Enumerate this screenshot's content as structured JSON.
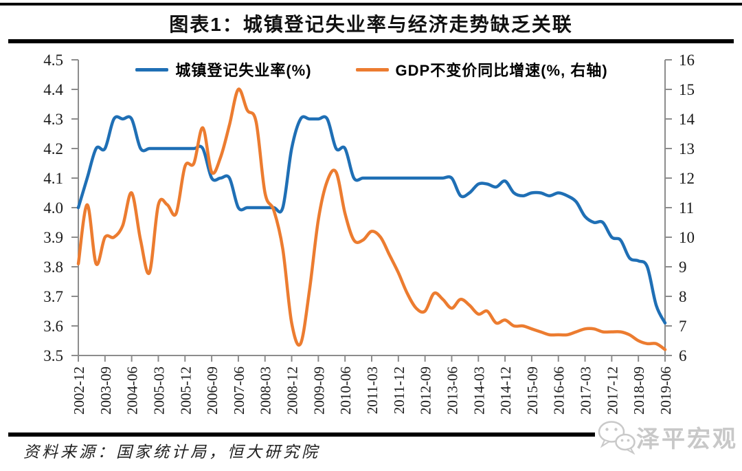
{
  "title": "图表1：城镇登记失业率与经济走势缺乏关联",
  "source_note": "资料来源：国家统计局，恒大研究院",
  "watermark": {
    "label": "泽平宏观",
    "icon": "wechat-icon"
  },
  "colors": {
    "unemployment_line": "#1f6fb5",
    "gdp_line": "#ec7c30",
    "axis": "#8c8c8c",
    "tick_text": "#1a1a1a",
    "watermark_gray": "#c8c8c8"
  },
  "chart_data": {
    "type": "line",
    "title": "图表1：城镇登记失业率与经济走势缺乏关联",
    "x_frequency": "quarterly",
    "x": [
      "2002-12",
      "2003-03",
      "2003-06",
      "2003-09",
      "2003-12",
      "2004-03",
      "2004-06",
      "2004-09",
      "2004-12",
      "2005-03",
      "2005-06",
      "2005-09",
      "2005-12",
      "2006-03",
      "2006-06",
      "2006-09",
      "2006-12",
      "2007-03",
      "2007-06",
      "2007-09",
      "2007-12",
      "2008-03",
      "2008-06",
      "2008-09",
      "2008-12",
      "2009-03",
      "2009-06",
      "2009-09",
      "2009-12",
      "2010-03",
      "2010-06",
      "2010-09",
      "2010-12",
      "2011-03",
      "2011-06",
      "2011-09",
      "2011-12",
      "2012-03",
      "2012-06",
      "2012-09",
      "2012-12",
      "2013-03",
      "2013-06",
      "2013-09",
      "2013-12",
      "2014-03",
      "2014-06",
      "2014-09",
      "2014-12",
      "2015-03",
      "2015-06",
      "2015-09",
      "2015-12",
      "2016-03",
      "2016-06",
      "2016-09",
      "2016-12",
      "2017-03",
      "2017-06",
      "2017-09",
      "2017-12",
      "2018-03",
      "2018-06",
      "2018-09",
      "2018-12",
      "2019-03",
      "2019-06"
    ],
    "x_tick_every": 3,
    "series": [
      {
        "name": "unemployment",
        "label": "城镇登记失业率(%)",
        "axis": "left",
        "color": "#1f6fb5",
        "values": [
          4.0,
          4.1,
          4.2,
          4.2,
          4.3,
          4.3,
          4.3,
          4.2,
          4.2,
          4.2,
          4.2,
          4.2,
          4.2,
          4.2,
          4.2,
          4.1,
          4.1,
          4.1,
          4.0,
          4.0,
          4.0,
          4.0,
          4.0,
          4.0,
          4.2,
          4.3,
          4.3,
          4.3,
          4.3,
          4.2,
          4.2,
          4.1,
          4.1,
          4.1,
          4.1,
          4.1,
          4.1,
          4.1,
          4.1,
          4.1,
          4.1,
          4.1,
          4.1,
          4.04,
          4.05,
          4.08,
          4.08,
          4.07,
          4.09,
          4.05,
          4.04,
          4.05,
          4.05,
          4.04,
          4.05,
          4.04,
          4.02,
          3.97,
          3.95,
          3.95,
          3.9,
          3.89,
          3.83,
          3.82,
          3.8,
          3.67,
          3.61
        ]
      },
      {
        "name": "gdp_growth",
        "label": "GDP不变价同比增速(%, 右轴)",
        "axis": "right",
        "color": "#ec7c30",
        "values": [
          9.1,
          11.1,
          9.1,
          10.0,
          10.0,
          10.4,
          11.5,
          9.9,
          8.8,
          11.1,
          11.1,
          10.8,
          12.4,
          12.5,
          13.7,
          12.2,
          12.7,
          13.8,
          15.0,
          14.3,
          13.9,
          11.5,
          10.9,
          9.6,
          7.1,
          6.4,
          8.2,
          10.6,
          11.9,
          12.2,
          10.8,
          9.9,
          9.9,
          10.2,
          10.0,
          9.4,
          8.8,
          8.1,
          7.6,
          7.5,
          8.1,
          7.9,
          7.6,
          7.9,
          7.7,
          7.4,
          7.5,
          7.1,
          7.2,
          7.0,
          7.0,
          6.9,
          6.8,
          6.7,
          6.7,
          6.7,
          6.8,
          6.9,
          6.9,
          6.8,
          6.8,
          6.8,
          6.7,
          6.5,
          6.4,
          6.4,
          6.2
        ]
      }
    ],
    "left_axis": {
      "min": 3.5,
      "max": 4.5,
      "tick_labels": [
        "4.5",
        "4.4",
        "4.3",
        "4.2",
        "4.1",
        "4.0",
        "3.9",
        "3.8",
        "3.7",
        "3.6",
        "3.5"
      ]
    },
    "right_axis": {
      "min": 6,
      "max": 16,
      "tick_labels": [
        "16",
        "15",
        "14",
        "13",
        "12",
        "11",
        "10",
        "9",
        "8",
        "7",
        "6"
      ]
    },
    "legend_position": "top",
    "grid": false
  }
}
